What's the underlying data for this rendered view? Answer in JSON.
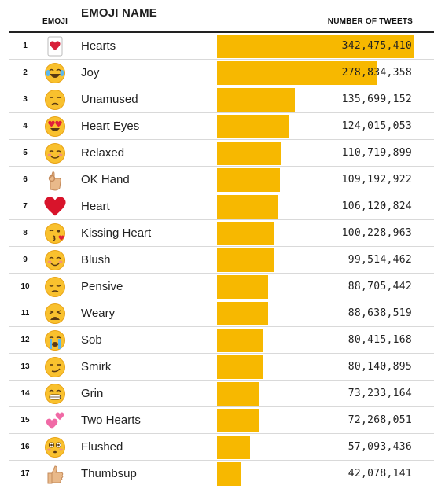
{
  "header": {
    "emoji_label": "EMOJI",
    "name_label": "EMOJI NAME",
    "count_label": "NUMBER OF TWEETS"
  },
  "colors": {
    "bar": "#f7b800",
    "rule": "#222222",
    "separator": "#d9d9d9"
  },
  "chart_data": {
    "type": "bar",
    "orientation": "horizontal",
    "xlabel": "NUMBER OF TWEETS",
    "xlim": [
      0,
      342475410
    ],
    "categories": [
      "Hearts",
      "Joy",
      "Unamused",
      "Heart Eyes",
      "Relaxed",
      "OK Hand",
      "Heart",
      "Kissing Heart",
      "Blush",
      "Pensive",
      "Weary",
      "Sob",
      "Smirk",
      "Grin",
      "Two Hearts",
      "Flushed",
      "Thumbsup"
    ],
    "values": [
      342475410,
      278834358,
      135699152,
      124015053,
      110719899,
      109192922,
      106120824,
      100228963,
      99514462,
      88705442,
      88638519,
      80415168,
      80140895,
      73233164,
      72268051,
      57093436,
      42078141
    ],
    "rows": [
      {
        "rank": "1",
        "name": "Hearts",
        "icon": "hearts-card-icon",
        "count": "342,475,410"
      },
      {
        "rank": "2",
        "name": "Joy",
        "icon": "joy-face-icon",
        "count": "278,834,358"
      },
      {
        "rank": "3",
        "name": "Unamused",
        "icon": "unamused-face-icon",
        "count": "135,699,152"
      },
      {
        "rank": "4",
        "name": "Heart Eyes",
        "icon": "heart-eyes-face-icon",
        "count": "124,015,053"
      },
      {
        "rank": "5",
        "name": "Relaxed",
        "icon": "relaxed-face-icon",
        "count": "110,719,899"
      },
      {
        "rank": "6",
        "name": "OK Hand",
        "icon": "ok-hand-icon",
        "count": "109,192,922"
      },
      {
        "rank": "7",
        "name": "Heart",
        "icon": "red-heart-icon",
        "count": "106,120,824"
      },
      {
        "rank": "8",
        "name": "Kissing Heart",
        "icon": "kissing-heart-face-icon",
        "count": "100,228,963"
      },
      {
        "rank": "9",
        "name": "Blush",
        "icon": "blush-face-icon",
        "count": "99,514,462"
      },
      {
        "rank": "10",
        "name": "Pensive",
        "icon": "pensive-face-icon",
        "count": "88,705,442"
      },
      {
        "rank": "11",
        "name": "Weary",
        "icon": "weary-face-icon",
        "count": "88,638,519"
      },
      {
        "rank": "12",
        "name": "Sob",
        "icon": "sob-face-icon",
        "count": "80,415,168"
      },
      {
        "rank": "13",
        "name": "Smirk",
        "icon": "smirk-face-icon",
        "count": "80,140,895"
      },
      {
        "rank": "14",
        "name": "Grin",
        "icon": "grin-face-icon",
        "count": "73,233,164"
      },
      {
        "rank": "15",
        "name": "Two Hearts",
        "icon": "two-hearts-icon",
        "count": "72,268,051"
      },
      {
        "rank": "16",
        "name": "Flushed",
        "icon": "flushed-face-icon",
        "count": "57,093,436"
      },
      {
        "rank": "17",
        "name": "Thumbsup",
        "icon": "thumbsup-icon",
        "count": "42,078,141"
      }
    ]
  }
}
